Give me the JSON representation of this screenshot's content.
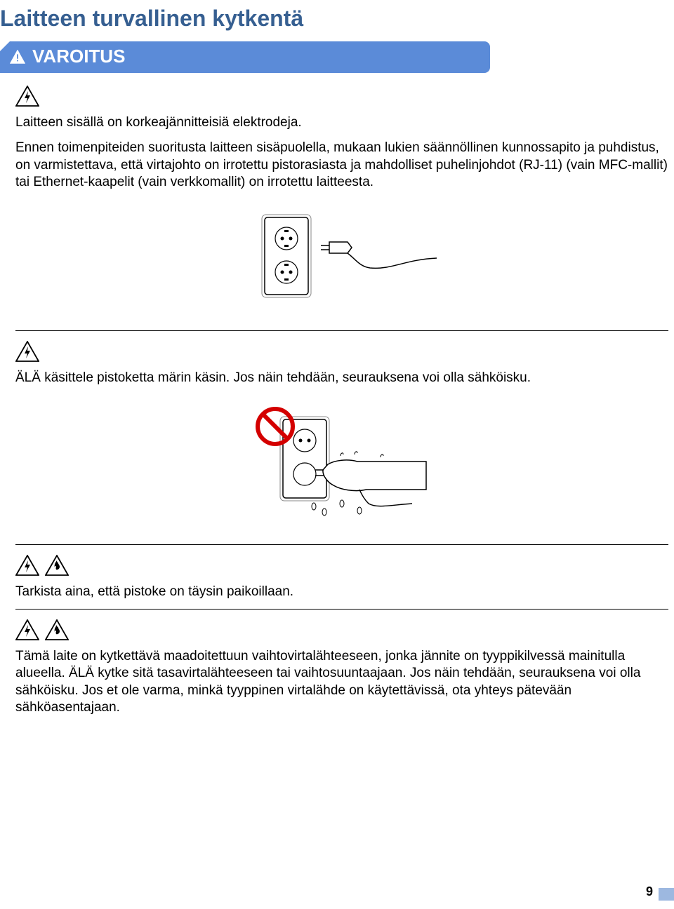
{
  "title": "Laitteen turvallinen kytkentä",
  "warning_tab": "VAROITUS",
  "section1": {
    "p1": "Laitteen sisällä on korkeajännitteisiä elektrodeja.",
    "p2": "Ennen toimenpiteiden suoritusta laitteen sisäpuolella, mukaan lukien säännöllinen kunnossapito ja puhdistus, on varmistettava, että virtajohto on irrotettu pistorasiasta ja mahdolliset puhelinjohdot (RJ-11) (vain MFC-mallit) tai Ethernet-kaapelit (vain verkkomallit) on irrotettu laitteesta."
  },
  "section2": {
    "p1": "ÄLÄ käsittele pistoketta märin käsin. Jos näin tehdään, seurauksena voi olla sähköisku."
  },
  "section3": {
    "p1": "Tarkista aina, että pistoke on täysin paikoillaan."
  },
  "section4": {
    "p1": "Tämä laite on kytkettävä maadoitettuun vaihtovirtalähteeseen, jonka jännite on tyyppikilvessä mainitulla alueella. ÄLÄ kytke sitä tasavirtalähteeseen tai vaihtosuuntaajaan. Jos näin tehdään, seurauksena voi olla sähköisku. Jos et ole varma, minkä tyyppinen virtalähde on käytettävissä, ota yhteys pätevään sähköasentajaan."
  },
  "page_number": "9",
  "icon_stroke": "#000",
  "svg": {
    "warn_small_white": "<svg width='22' height='20' viewBox='0 0 24 22'><path d='M12 1 L23 21 L1 21 Z' fill='#fff' stroke='#fff' stroke-width='1.5'/><rect x='11' y='7' width='2' height='7' fill='#5b8bd8'/><rect x='11' y='16' width='2' height='2' fill='#5b8bd8'/></svg>",
    "bolt_tri": "<svg width='34' height='30' viewBox='0 0 34 30'><path d='M17 1 L33 29 L1 29 Z' fill='none' stroke='#000' stroke-width='1.8'/><path d='M18 8 L13 18 L17 18 L15 25 L21 14 L17 14 Z' fill='#000'/></svg>",
    "fire_tri": "<svg width='34' height='30' viewBox='0 0 34 30'><path d='M17 1 L33 29 L1 29 Z' fill='none' stroke='#000' stroke-width='1.8'/><path d='M17 8 C14 12 13 15 14 18 C14 16 16 15 16 17 C16 18 15 19 16 21 C18 22 21 20 21 17 C21 14 18 13 19 10 C19 12 17 11 17 8 Z' fill='#000'/></svg>",
    "outlet_plug": "<svg width='280' height='150' viewBox='0 0 280 150'><rect x='30' y='20' width='62' height='110' rx='4' fill='#fff' stroke='#000' stroke-width='1.5'/><rect x='26' y='16' width='70' height='118' rx='6' fill='none' stroke='#888' stroke-width='1'/><circle cx='61' cy='50' r='16' fill='none' stroke='#000' stroke-width='1.2'/><circle cx='55' cy='50' r='2.5' fill='#000'/><circle cx='67' cy='50' r='2.5' fill='#000'/><rect x='58' y='38' width='6' height='3' fill='#000'/><rect x='58' y='59' width='6' height='3' fill='#000'/><circle cx='61' cy='98' r='16' fill='none' stroke='#000' stroke-width='1.2'/><circle cx='55' cy='98' r='2.5' fill='#000'/><circle cx='67' cy='98' r='2.5' fill='#000'/><rect x='58' y='86' width='6' height='3' fill='#000'/><rect x='58' y='107' width='6' height='3' fill='#000'/><line x1='110' y1='60' x2='122' y2='60' stroke='#000' stroke-width='1.5'/><line x1='110' y1='66' x2='122' y2='66' stroke='#000' stroke-width='1.5'/><path d='M122 55 L148 55 L154 63 L148 71 L122 71 Z' fill='#fff' stroke='#000' stroke-width='1.5'/><path d='M148 71 C158 78 165 90 180 92 C210 95 230 80 275 78' fill='none' stroke='#000' stroke-width='1.5'/></svg>",
    "wet_hand": "<svg width='300' height='175' viewBox='0 0 300 175'><rect x='66' y='28' width='62' height='112' rx='4' fill='#fff' stroke='#000' stroke-width='1.5'/><rect x='62' y='24' width='70' height='120' rx='6' fill='none' stroke='#888' stroke-width='1'/><circle cx='97' cy='58' r='16' fill='none' stroke='#000' stroke-width='1.2'/><circle cx='91' cy='58' r='2.5' fill='#000'/><circle cx='103' cy='58' r='2.5' fill='#000'/><circle cx='97' cy='106' r='16' fill='none' stroke='#000' stroke-width='1.2'/><path d='M130 92 C140 86 158 84 172 88 L270 88 L270 128 L185 128 C168 132 148 128 138 122 C130 118 122 108 123 100 Z' fill='#fff' stroke='#000' stroke-width='1.5'/><line x1='112' y1='100' x2='124' y2='100' stroke='#000' stroke-width='1.5'/><line x1='112' y1='108' x2='124' y2='108' stroke='#000' stroke-width='1.5'/><path d='M175 128 C178 135 182 142 188 148 C200 155 220 150 250 148' fill='none' stroke='#000' stroke-width='1.5'/><path d='M148 80 C148 76 152 74 152 78' fill='none' stroke='#000'/><path d='M168 78 C168 74 172 72 172 76' fill='none' stroke='#000'/><path d='M205 82 C205 78 209 76 209 80' fill='none' stroke='#000'/><ellipse cx='110' cy='152' rx='3' ry='5' fill='none' stroke='#000'/><ellipse cx='125' cy='160' rx='3' ry='5' fill='none' stroke='#000'/><ellipse cx='150' cy='148' rx='3' ry='5' fill='none' stroke='#000'/><ellipse cx='175' cy='158' rx='3' ry='5' fill='none' stroke='#000'/><circle cx='55' cy='38' r='25' fill='none' stroke='#d40000' stroke-width='6'/><line x1='37' y1='20' x2='73' y2='56' stroke='#d40000' stroke-width='6'/></svg>"
  }
}
